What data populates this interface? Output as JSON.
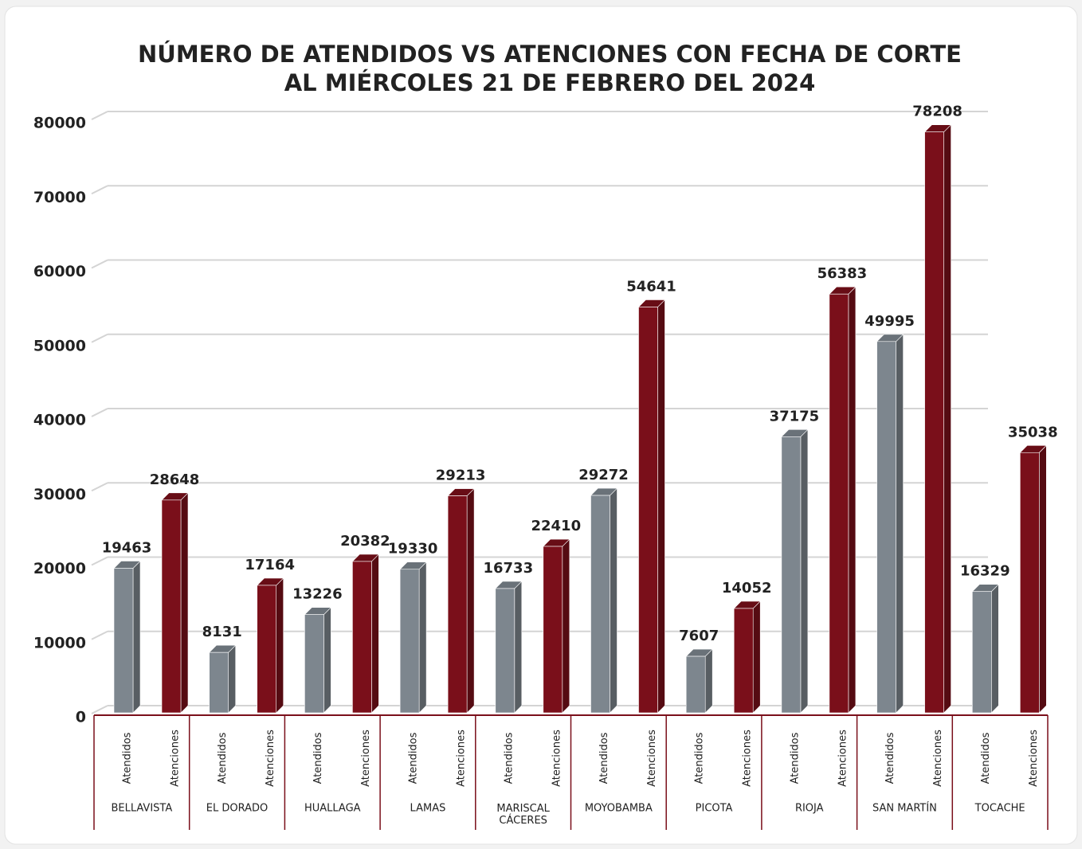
{
  "chart_data": {
    "type": "bar3d",
    "title": [
      "NÚMERO DE ATENDIDOS VS ATENCIONES CON FECHA DE CORTE",
      "AL MIÉRCOLES 21 DE FEBRERO DEL 2024"
    ],
    "categories": [
      "BELLAVISTA",
      "EL DORADO",
      "HUALLAGA",
      "LAMAS",
      "MARISCAL CÁCERES",
      "MOYOBAMBA",
      "PICOTA",
      "RIOJA",
      "SAN MARTÍN",
      "TOCACHE"
    ],
    "series": [
      {
        "name": "Atendidos",
        "color": "#7d868e",
        "values": [
          19463,
          8131,
          13226,
          19330,
          16733,
          29272,
          7607,
          37175,
          49995,
          16329
        ]
      },
      {
        "name": "Atenciones",
        "color": "#7a0f1a",
        "values": [
          28648,
          17164,
          20382,
          29213,
          22410,
          54641,
          14052,
          56383,
          78208,
          35038
        ]
      }
    ],
    "ylim": [
      0,
      80000
    ],
    "yticks": [
      0,
      10000,
      20000,
      30000,
      40000,
      50000,
      60000,
      70000,
      80000
    ],
    "grid": true
  }
}
